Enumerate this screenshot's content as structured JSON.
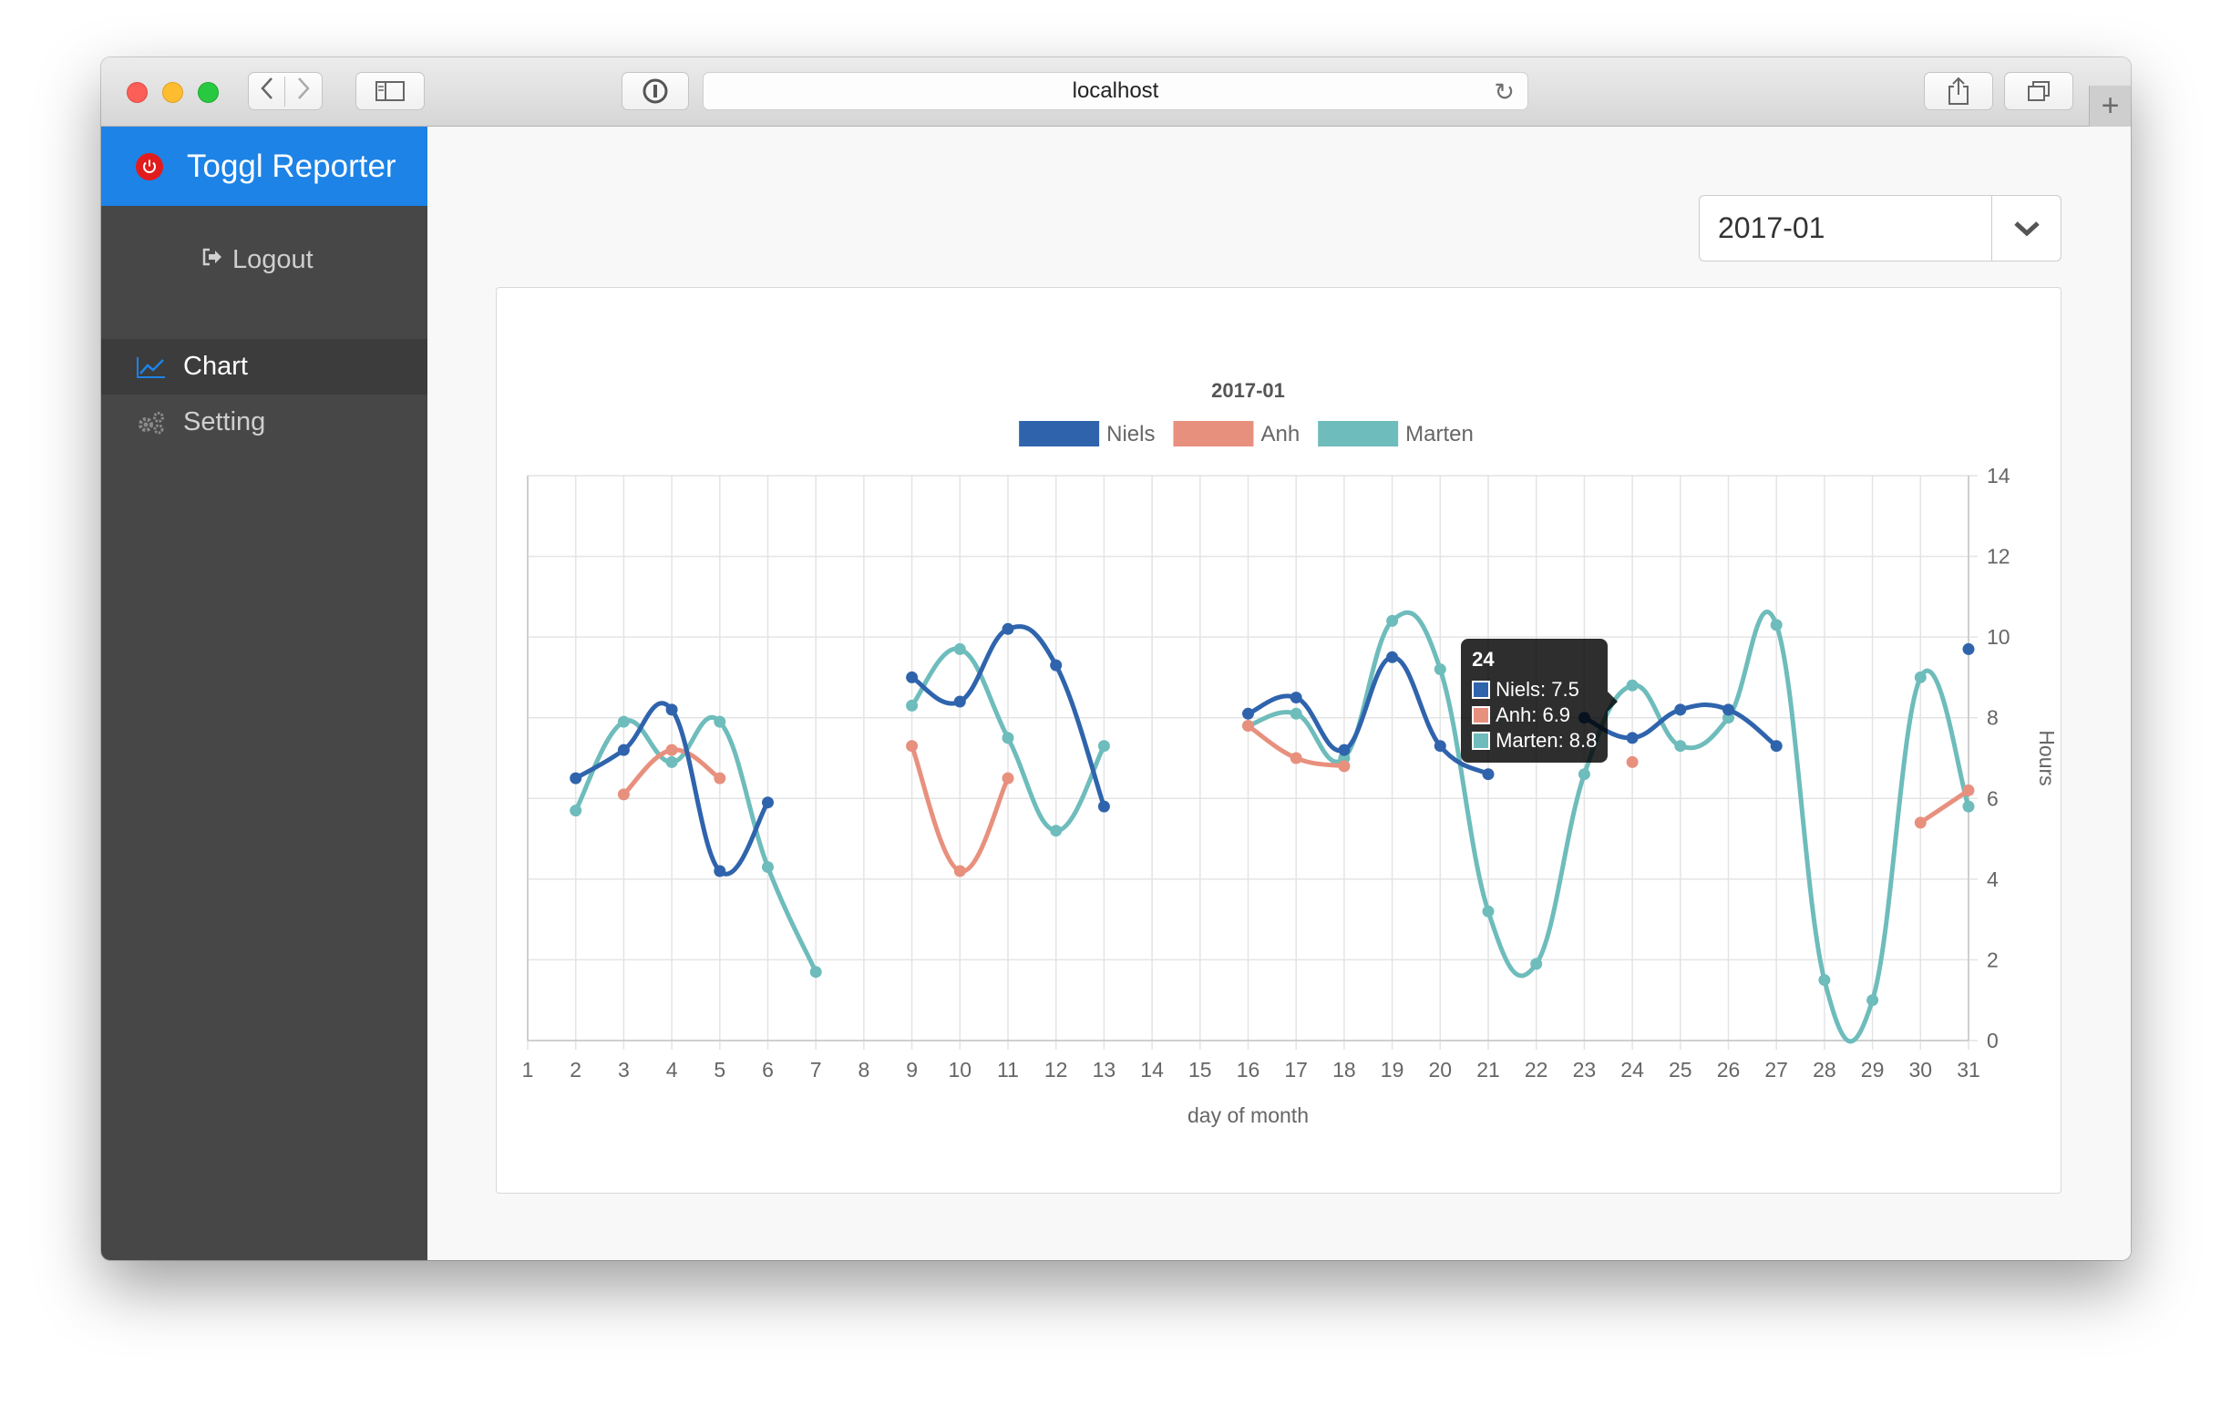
{
  "browser": {
    "url": "localhost"
  },
  "app": {
    "brand": "Toggl Reporter",
    "logout_label": "Logout",
    "nav": [
      {
        "label": "Chart",
        "active": true
      },
      {
        "label": "Setting",
        "active": false
      }
    ]
  },
  "month_select": {
    "value": "2017-01"
  },
  "colors": {
    "niels": "#2f64ad",
    "anh": "#e8907e",
    "marten": "#6ebcbc",
    "brand": "#1d83e6"
  },
  "tooltip": {
    "title": "24",
    "rows": [
      "Niels: 7.5",
      "Anh: 6.9",
      "Marten: 8.8"
    ]
  },
  "chart_data": {
    "type": "line",
    "title": "2017-01",
    "xlabel": "day of month",
    "ylabel": "Hours",
    "x": [
      1,
      2,
      3,
      4,
      5,
      6,
      7,
      8,
      9,
      10,
      11,
      12,
      13,
      14,
      15,
      16,
      17,
      18,
      19,
      20,
      21,
      22,
      23,
      24,
      25,
      26,
      27,
      28,
      29,
      30,
      31
    ],
    "ylim": [
      0,
      14
    ],
    "yticks": [
      0,
      2,
      4,
      6,
      8,
      10,
      12,
      14
    ],
    "y_axis_side": "right",
    "grid": true,
    "legend": "top",
    "series": [
      {
        "name": "Niels",
        "color": "#2f64ad",
        "values": [
          null,
          6.5,
          7.2,
          8.2,
          4.2,
          5.9,
          null,
          null,
          9.0,
          8.4,
          10.2,
          9.3,
          5.8,
          null,
          null,
          8.1,
          8.5,
          7.2,
          9.5,
          7.3,
          6.6,
          null,
          8.0,
          7.5,
          8.2,
          8.2,
          7.3,
          null,
          null,
          null,
          9.7
        ]
      },
      {
        "name": "Anh",
        "color": "#e8907e",
        "values": [
          null,
          null,
          6.1,
          7.2,
          6.5,
          null,
          null,
          null,
          7.3,
          4.2,
          6.5,
          null,
          null,
          null,
          null,
          7.8,
          7.0,
          6.8,
          null,
          null,
          null,
          null,
          null,
          6.9,
          null,
          null,
          null,
          null,
          null,
          5.4,
          6.2
        ]
      },
      {
        "name": "Marten",
        "color": "#6ebcbc",
        "values": [
          null,
          5.7,
          7.9,
          6.9,
          7.9,
          4.3,
          1.7,
          null,
          8.3,
          9.7,
          7.5,
          5.2,
          7.3,
          null,
          null,
          7.8,
          8.1,
          7.0,
          10.4,
          9.2,
          3.2,
          1.9,
          6.6,
          8.8,
          7.3,
          8.0,
          10.3,
          1.5,
          1.0,
          9.0,
          5.8
        ]
      }
    ]
  }
}
